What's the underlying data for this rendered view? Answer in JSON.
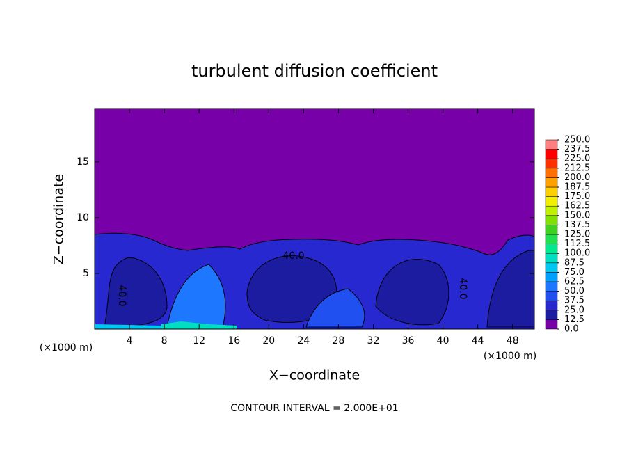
{
  "chart_data": {
    "type": "contour",
    "title": "turbulent diffusion coefficient",
    "x_label": "X−coordinate",
    "y_label": "Z−coordinate",
    "x_unit": "(×1000 m)",
    "y_unit": "(×1000 m)",
    "note": "CONTOUR INTERVAL = 2.000E+01",
    "contour_labels": [
      "40.0",
      "40.0",
      "40.0"
    ],
    "xlim": [
      0,
      50.5
    ],
    "ylim": [
      0,
      19.8
    ],
    "xticks": [
      4,
      8,
      12,
      16,
      20,
      24,
      28,
      32,
      36,
      40,
      44,
      48
    ],
    "yticks": [
      5,
      10,
      15
    ],
    "levels": [
      {
        "value": 0,
        "label": "0.0"
      },
      {
        "value": 12.5,
        "label": "12.5"
      },
      {
        "value": 25,
        "label": "25.0"
      },
      {
        "value": 37.5,
        "label": "37.5"
      },
      {
        "value": 50,
        "label": "50.0"
      },
      {
        "value": 62.5,
        "label": "62.5"
      },
      {
        "value": 75,
        "label": "75.0"
      },
      {
        "value": 87.5,
        "label": "87.5"
      },
      {
        "value": 100,
        "label": "100.0"
      },
      {
        "value": 112.5,
        "label": "112.5"
      },
      {
        "value": 125,
        "label": "125.0"
      },
      {
        "value": 137.5,
        "label": "137.5"
      },
      {
        "value": 150,
        "label": "150.0"
      },
      {
        "value": 162.5,
        "label": "162.5"
      },
      {
        "value": 175,
        "label": "175.0"
      },
      {
        "value": 187.5,
        "label": "187.5"
      },
      {
        "value": 200,
        "label": "200.0"
      },
      {
        "value": 212.5,
        "label": "212.5"
      },
      {
        "value": 225,
        "label": "225.0"
      },
      {
        "value": 237.5,
        "label": "237.5"
      },
      {
        "value": 250,
        "label": "250.0"
      }
    ],
    "colors": [
      "#7800a8",
      "#1c1ca0",
      "#2828d0",
      "#2050f0",
      "#1e78ff",
      "#00a0ff",
      "#00c8f0",
      "#00e0c0",
      "#00e890",
      "#20e050",
      "#40d020",
      "#80e000",
      "#c0f000",
      "#f0f000",
      "#ffd000",
      "#ffa000",
      "#ff7000",
      "#ff3000",
      "#ff0000",
      "#ff8080"
    ]
  }
}
